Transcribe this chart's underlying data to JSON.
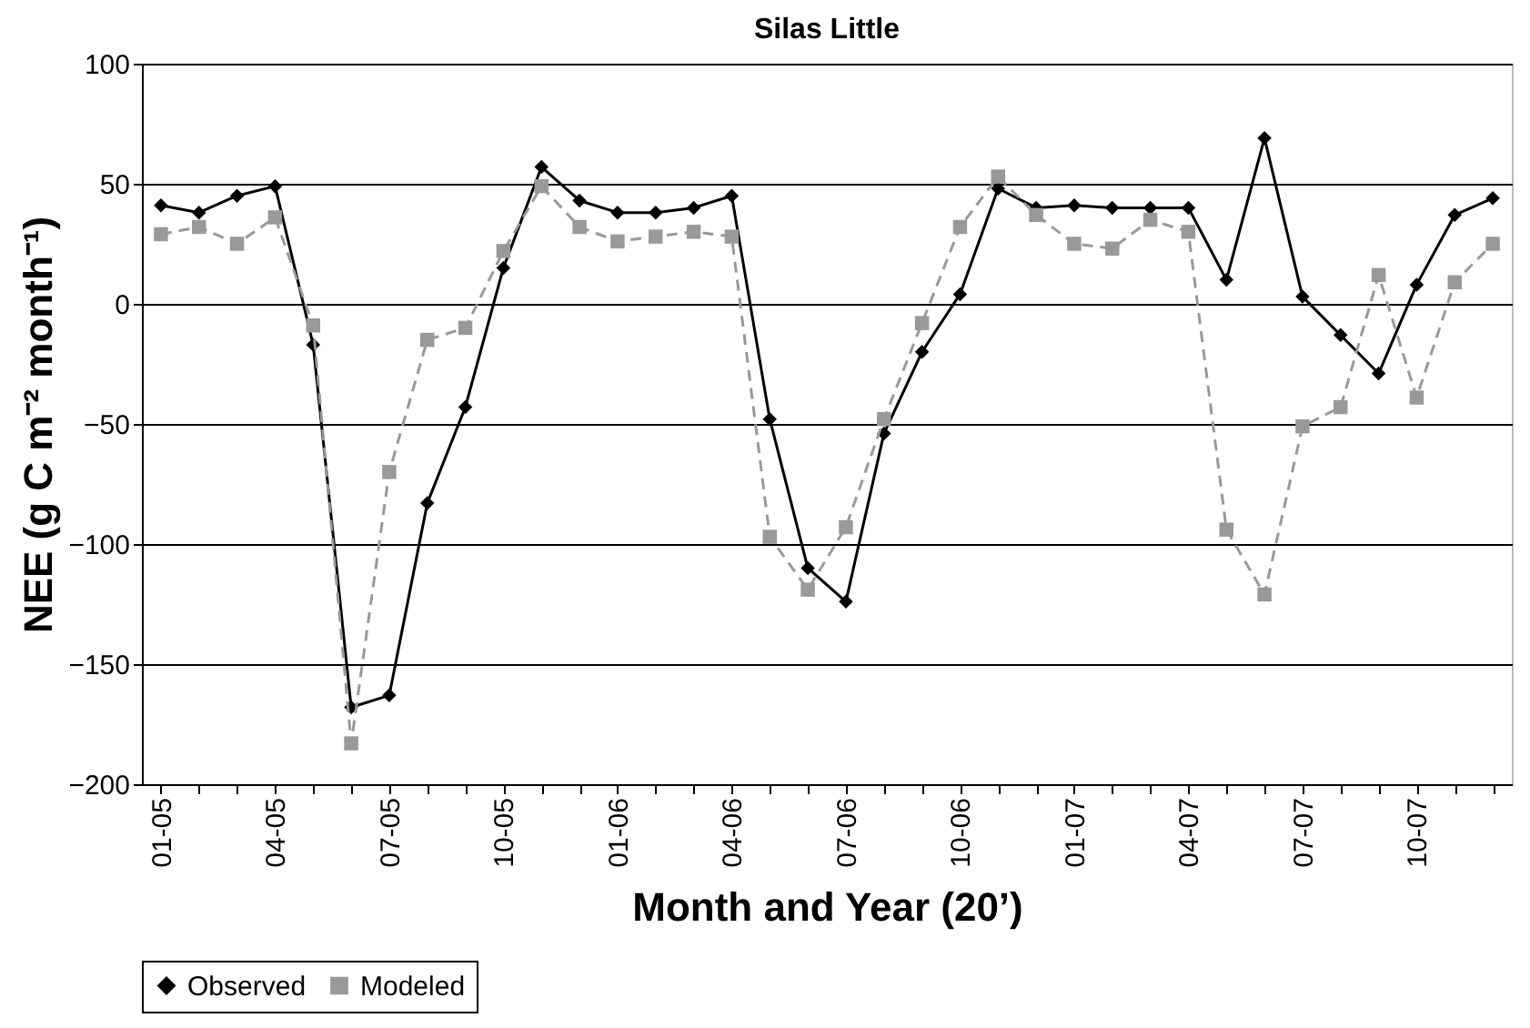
{
  "chart_data": {
    "type": "line",
    "title": "Silas Little",
    "xlabel": "Month and Year (20’)",
    "ylabel": "NEE (g C m⁻² month⁻¹)",
    "categories": [
      "01-05",
      null,
      null,
      "04-05",
      null,
      null,
      "07-05",
      null,
      null,
      "10-05",
      null,
      null,
      "01-06",
      null,
      null,
      "04-06",
      null,
      null,
      "07-06",
      null,
      null,
      "10-06",
      null,
      null,
      "01-07",
      null,
      null,
      "04-07",
      null,
      null,
      "07-07",
      null,
      null,
      "10-07",
      null,
      null
    ],
    "series": [
      {
        "name": "Observed",
        "color": "#000000",
        "marker": "diamond",
        "line_style": "solid",
        "values": [
          41,
          38,
          45,
          49,
          -17,
          -168,
          -163,
          -83,
          -43,
          15,
          57,
          43,
          38,
          38,
          40,
          45,
          -48,
          -110,
          -124,
          -54,
          -20,
          4,
          48,
          40,
          41,
          40,
          40,
          40,
          10,
          69,
          3,
          -13,
          -29,
          8,
          37,
          44
        ]
      },
      {
        "name": "Modeled",
        "color": "#999999",
        "marker": "square",
        "line_style": "dashed",
        "values": [
          29,
          32,
          25,
          36,
          -9,
          -183,
          -70,
          -15,
          -10,
          22,
          49,
          32,
          26,
          28,
          30,
          28,
          -97,
          -119,
          -93,
          -48,
          -8,
          32,
          53,
          37,
          25,
          23,
          35,
          30,
          -94,
          -121,
          -51,
          -43,
          12,
          -39,
          9,
          25
        ]
      }
    ],
    "ylim": [
      -200,
      100
    ],
    "yticks": [
      -200,
      -150,
      -100,
      -50,
      0,
      50,
      100
    ],
    "grid": "y",
    "legend": "bottom"
  }
}
